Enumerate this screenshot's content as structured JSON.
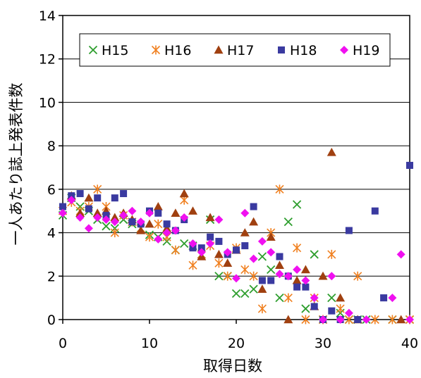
{
  "chart_data": {
    "type": "scatter",
    "title": "",
    "xlabel": "取得日数",
    "ylabel": "一人あたり誌上発表件数",
    "xlim": [
      0,
      40
    ],
    "ylim": [
      0,
      14
    ],
    "x_ticks": [
      0,
      10,
      20,
      30,
      40
    ],
    "y_ticks": [
      0,
      2,
      4,
      6,
      8,
      10,
      12,
      14
    ],
    "x_tick_labels": [
      "0",
      "10",
      "20",
      "30",
      "40"
    ],
    "y_tick_labels": [
      "0",
      "2",
      "4",
      "6",
      "8",
      "10",
      "12",
      "14"
    ],
    "grid": "horizontal",
    "legend_position": "top",
    "series": [
      {
        "name": "H15",
        "marker": "x",
        "color": "#2e9e2e",
        "points": [
          [
            0,
            4.8
          ],
          [
            1,
            5.6
          ],
          [
            2,
            5.2
          ],
          [
            3,
            5.0
          ],
          [
            4,
            4.6
          ],
          [
            5,
            4.3
          ],
          [
            6,
            4.2
          ],
          [
            7,
            4.6
          ],
          [
            8,
            4.4
          ],
          [
            9,
            4.2
          ],
          [
            10,
            3.9
          ],
          [
            11,
            3.8
          ],
          [
            12,
            3.6
          ],
          [
            13,
            3.2
          ],
          [
            14,
            3.5
          ],
          [
            15,
            3.4
          ],
          [
            16,
            3.0
          ],
          [
            17,
            4.6
          ],
          [
            18,
            2.0
          ],
          [
            19,
            2.0
          ],
          [
            20,
            1.2
          ],
          [
            21,
            1.2
          ],
          [
            22,
            1.4
          ],
          [
            23,
            2.9
          ],
          [
            24,
            2.3
          ],
          [
            25,
            1.0
          ],
          [
            26,
            4.5
          ],
          [
            27,
            5.3
          ],
          [
            28,
            0.5
          ],
          [
            29,
            3.0
          ],
          [
            30,
            0.0
          ],
          [
            31,
            1.0
          ],
          [
            32,
            0.3
          ],
          [
            33,
            0.0
          ],
          [
            34,
            0.0
          ],
          [
            35,
            0.0
          ],
          [
            38,
            0.0
          ],
          [
            40,
            0.0
          ]
        ]
      },
      {
        "name": "H16",
        "marker": "asterisk",
        "color": "#f08020",
        "points": [
          [
            0,
            5.0
          ],
          [
            1,
            5.4
          ],
          [
            2,
            5.0
          ],
          [
            3,
            5.2
          ],
          [
            4,
            6.0
          ],
          [
            5,
            5.2
          ],
          [
            6,
            4.0
          ],
          [
            7,
            4.8
          ],
          [
            8,
            4.5
          ],
          [
            9,
            4.2
          ],
          [
            10,
            3.8
          ],
          [
            11,
            4.4
          ],
          [
            12,
            3.8
          ],
          [
            13,
            3.2
          ],
          [
            14,
            5.5
          ],
          [
            15,
            2.5
          ],
          [
            16,
            3.0
          ],
          [
            17,
            3.4
          ],
          [
            18,
            2.6
          ],
          [
            19,
            2.0
          ],
          [
            20,
            3.3
          ],
          [
            21,
            2.3
          ],
          [
            22,
            2.0
          ],
          [
            23,
            0.5
          ],
          [
            24,
            4.0
          ],
          [
            25,
            6.0
          ],
          [
            26,
            1.0
          ],
          [
            27,
            3.3
          ],
          [
            28,
            0.0
          ],
          [
            29,
            1.0
          ],
          [
            30,
            0.0
          ],
          [
            31,
            3.0
          ],
          [
            32,
            0.5
          ],
          [
            33,
            0.0
          ],
          [
            34,
            2.0
          ],
          [
            36,
            0.0
          ],
          [
            38,
            0.0
          ],
          [
            40,
            0.0
          ]
        ]
      },
      {
        "name": "H17",
        "marker": "triangle",
        "color": "#a04010",
        "points": [
          [
            1,
            5.7
          ],
          [
            2,
            4.9
          ],
          [
            3,
            5.6
          ],
          [
            4,
            4.9
          ],
          [
            5,
            5.0
          ],
          [
            6,
            4.7
          ],
          [
            7,
            4.9
          ],
          [
            8,
            4.6
          ],
          [
            9,
            4.1
          ],
          [
            10,
            4.4
          ],
          [
            11,
            5.2
          ],
          [
            12,
            4.2
          ],
          [
            13,
            4.9
          ],
          [
            14,
            5.8
          ],
          [
            15,
            5.0
          ],
          [
            16,
            2.9
          ],
          [
            17,
            4.7
          ],
          [
            18,
            3.0
          ],
          [
            19,
            2.6
          ],
          [
            20,
            3.2
          ],
          [
            21,
            4.0
          ],
          [
            22,
            4.5
          ],
          [
            23,
            1.4
          ],
          [
            24,
            3.8
          ],
          [
            25,
            2.5
          ],
          [
            26,
            0.0
          ],
          [
            27,
            1.8
          ],
          [
            28,
            2.3
          ],
          [
            29,
            0.6
          ],
          [
            30,
            2.0
          ],
          [
            31,
            7.7
          ],
          [
            32,
            1.0
          ],
          [
            34,
            0.0
          ],
          [
            39,
            0.0
          ]
        ]
      },
      {
        "name": "H18",
        "marker": "square",
        "color": "#3a3aa0",
        "points": [
          [
            0,
            5.2
          ],
          [
            1,
            5.7
          ],
          [
            2,
            5.8
          ],
          [
            3,
            5.1
          ],
          [
            4,
            5.6
          ],
          [
            5,
            4.8
          ],
          [
            6,
            5.6
          ],
          [
            7,
            5.8
          ],
          [
            8,
            4.5
          ],
          [
            9,
            4.4
          ],
          [
            10,
            5.0
          ],
          [
            11,
            4.9
          ],
          [
            12,
            4.4
          ],
          [
            13,
            4.1
          ],
          [
            14,
            4.6
          ],
          [
            15,
            3.3
          ],
          [
            16,
            3.3
          ],
          [
            17,
            3.8
          ],
          [
            18,
            3.6
          ],
          [
            19,
            3.0
          ],
          [
            20,
            3.2
          ],
          [
            21,
            3.4
          ],
          [
            22,
            5.2
          ],
          [
            23,
            1.8
          ],
          [
            24,
            1.8
          ],
          [
            25,
            2.9
          ],
          [
            26,
            2.0
          ],
          [
            27,
            1.5
          ],
          [
            28,
            1.5
          ],
          [
            29,
            0.6
          ],
          [
            30,
            0.0
          ],
          [
            31,
            0.4
          ],
          [
            32,
            0.0
          ],
          [
            33,
            4.1
          ],
          [
            34,
            0.0
          ],
          [
            36,
            5.0
          ],
          [
            37,
            1.0
          ],
          [
            40,
            7.1
          ]
        ]
      },
      {
        "name": "H19",
        "marker": "diamond",
        "color": "#f010f0",
        "points": [
          [
            0,
            4.9
          ],
          [
            1,
            5.5
          ],
          [
            2,
            4.7
          ],
          [
            3,
            4.2
          ],
          [
            4,
            4.7
          ],
          [
            5,
            4.6
          ],
          [
            6,
            4.5
          ],
          [
            7,
            4.8
          ],
          [
            8,
            5.0
          ],
          [
            9,
            4.5
          ],
          [
            10,
            4.9
          ],
          [
            11,
            3.7
          ],
          [
            12,
            4.0
          ],
          [
            13,
            4.1
          ],
          [
            14,
            4.7
          ],
          [
            15,
            3.5
          ],
          [
            16,
            3.1
          ],
          [
            17,
            3.5
          ],
          [
            18,
            4.6
          ],
          [
            19,
            3.1
          ],
          [
            20,
            1.9
          ],
          [
            21,
            4.9
          ],
          [
            22,
            2.8
          ],
          [
            23,
            3.6
          ],
          [
            24,
            3.1
          ],
          [
            25,
            2.1
          ],
          [
            26,
            2.0
          ],
          [
            27,
            2.3
          ],
          [
            28,
            1.8
          ],
          [
            29,
            1.0
          ],
          [
            30,
            0.0
          ],
          [
            31,
            2.0
          ],
          [
            32,
            0.0
          ],
          [
            33,
            0.3
          ],
          [
            35,
            0.0
          ],
          [
            38,
            1.0
          ],
          [
            39,
            3.0
          ],
          [
            40,
            0.0
          ]
        ]
      }
    ]
  }
}
